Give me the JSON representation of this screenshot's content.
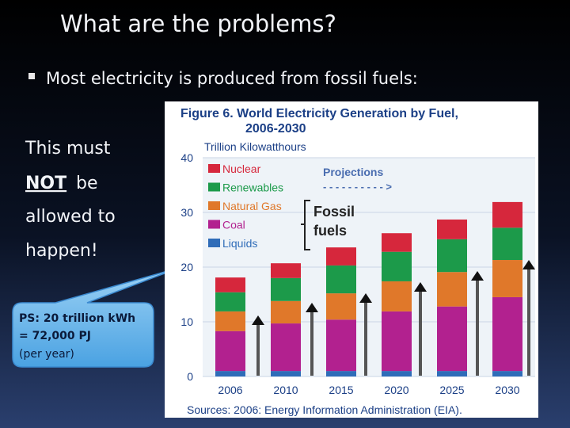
{
  "slide": {
    "title": "What are the problems?",
    "bullet": "Most electricity is produced from fossil fuels:",
    "side_text": [
      "This must",
      "NOT",
      "be",
      "allowed to",
      "happen!"
    ],
    "callout": [
      "PS: 20 trillion kWh",
      "= 72,000 PJ",
      "(per year)"
    ]
  },
  "chart_data": {
    "type": "stacked_bar",
    "title_lines": [
      "Figure 6.  World Electricity Generation by Fuel,",
      "2006-2030"
    ],
    "y_label": "Trillion Kilowatthours",
    "source": "Sources:  2006:  Energy  Information  Administration  (EIA).",
    "annotations": [
      "Projections",
      "- - - - - - - - - - >",
      "Fossil",
      "fuels"
    ],
    "categories": [
      "2006",
      "2010",
      "2015",
      "2020",
      "2025",
      "2030"
    ],
    "series": [
      {
        "name": "Liquids",
        "color": "#2f6cb8",
        "values": [
          1.0,
          1.0,
          1.0,
          1.0,
          1.0,
          1.0
        ]
      },
      {
        "name": "Coal",
        "color": "#b2218f",
        "values": [
          7.3,
          8.7,
          9.4,
          10.9,
          11.8,
          13.5
        ]
      },
      {
        "name": "Natural Gas",
        "color": "#e0782a",
        "values": [
          3.6,
          4.1,
          4.8,
          5.5,
          6.3,
          6.8
        ]
      },
      {
        "name": "Renewables",
        "color": "#1c9a4a",
        "values": [
          3.5,
          4.2,
          5.1,
          5.4,
          6.0,
          5.9
        ]
      },
      {
        "name": "Nuclear",
        "color": "#d6273c",
        "values": [
          2.7,
          2.7,
          3.3,
          3.4,
          3.6,
          4.7
        ]
      }
    ],
    "ylim": [
      0,
      40
    ],
    "yticks": [
      0,
      10,
      20,
      30,
      40
    ],
    "grid": true
  }
}
